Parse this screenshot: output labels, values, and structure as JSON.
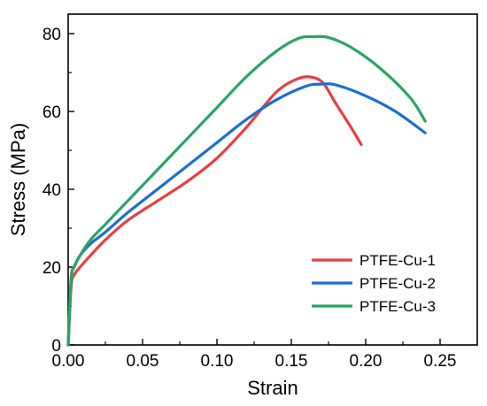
{
  "chart_data": {
    "type": "line",
    "title": "",
    "xlabel": "Strain",
    "ylabel": "Stress (MPa)",
    "xlim": [
      0,
      0.275
    ],
    "ylim": [
      0,
      85
    ],
    "xticks": [
      0.0,
      0.05,
      0.1,
      0.15,
      0.2,
      0.25
    ],
    "xtick_labels": [
      "0.00",
      "0.05",
      "0.10",
      "0.15",
      "0.20",
      "0.25"
    ],
    "yticks": [
      0,
      20,
      40,
      60,
      80
    ],
    "ytick_labels": [
      "0",
      "20",
      "40",
      "60",
      "80"
    ],
    "grid": false,
    "legend_position": "bottom-right",
    "series": [
      {
        "name": "PTFE-Cu-1",
        "color": "#e8403f",
        "x": [
          0.0,
          0.002,
          0.004,
          0.008,
          0.015,
          0.025,
          0.04,
          0.06,
          0.08,
          0.1,
          0.12,
          0.14,
          0.155,
          0.165,
          0.172,
          0.18,
          0.19,
          0.197
        ],
        "y": [
          0,
          15,
          18,
          20,
          23,
          27,
          32,
          37,
          42,
          48,
          56,
          65,
          68.5,
          68.7,
          67,
          62,
          56,
          51.5
        ]
      },
      {
        "name": "PTFE-Cu-2",
        "color": "#1a6fd1",
        "x": [
          0.0,
          0.002,
          0.004,
          0.008,
          0.015,
          0.025,
          0.04,
          0.06,
          0.08,
          0.1,
          0.12,
          0.14,
          0.16,
          0.17,
          0.18,
          0.2,
          0.22,
          0.24
        ],
        "y": [
          0,
          17,
          20,
          23,
          26,
          29,
          34,
          40,
          46,
          52,
          58,
          63,
          66.5,
          67,
          66.8,
          64,
          60,
          54.5
        ]
      },
      {
        "name": "PTFE-Cu-3",
        "color": "#2aa464",
        "x": [
          0.0,
          0.002,
          0.004,
          0.008,
          0.015,
          0.025,
          0.04,
          0.06,
          0.08,
          0.1,
          0.12,
          0.14,
          0.155,
          0.165,
          0.175,
          0.19,
          0.21,
          0.23,
          0.24
        ],
        "y": [
          0,
          17,
          20,
          23,
          27,
          31,
          37,
          45,
          53,
          61,
          69,
          75.5,
          78.8,
          79.2,
          79,
          76.5,
          71,
          63.5,
          57.5
        ]
      }
    ]
  }
}
